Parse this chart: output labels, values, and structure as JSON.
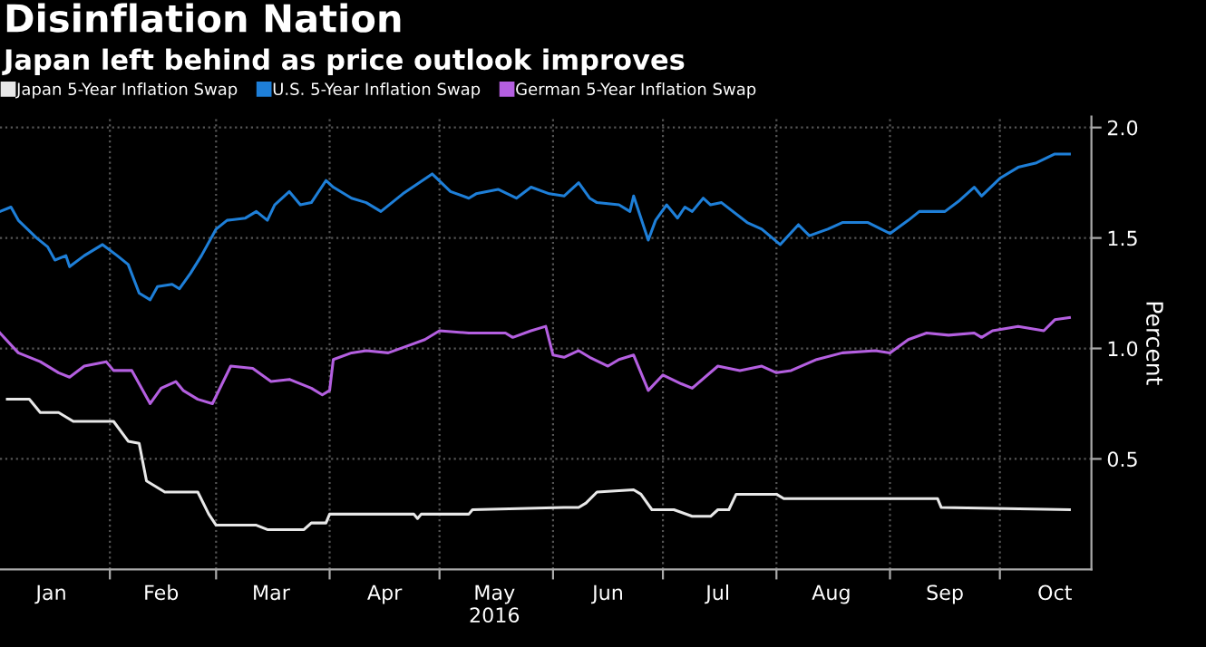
{
  "chart_data": {
    "type": "line",
    "title": "Disinflation Nation",
    "subtitle": "Japan left behind as price outlook improves",
    "ylabel": "Percent",
    "xlim": [
      "2016-01-02",
      "2016-10-26"
    ],
    "ylim": [
      0,
      2.05
    ],
    "yticks": [
      {
        "value": 0.5,
        "label": "0.5"
      },
      {
        "value": 1.0,
        "label": "1.0"
      },
      {
        "value": 1.5,
        "label": "1.5"
      },
      {
        "value": 2.0,
        "label": "2.0"
      }
    ],
    "xticks": [
      {
        "value": "2016-02-01",
        "label": null
      },
      {
        "value": "2016-03-01",
        "label": null
      },
      {
        "value": "2016-04-01",
        "label": null
      },
      {
        "value": "2016-05-01",
        "label": null
      },
      {
        "value": "2016-06-01",
        "label": null
      },
      {
        "value": "2016-07-01",
        "label": null
      },
      {
        "value": "2016-08-01",
        "label": null
      },
      {
        "value": "2016-09-01",
        "label": null
      },
      {
        "value": "2016-10-01",
        "label": null
      },
      {
        "value": "2016-01-16",
        "label": "Jan"
      },
      {
        "value": "2016-02-15",
        "label": "Feb"
      },
      {
        "value": "2016-03-16",
        "label": "Mar"
      },
      {
        "value": "2016-04-16",
        "label": "Apr"
      },
      {
        "value": "2016-05-16",
        "label": "May\n2016"
      },
      {
        "value": "2016-06-16",
        "label": "Jun"
      },
      {
        "value": "2016-07-16",
        "label": "Jul"
      },
      {
        "value": "2016-08-16",
        "label": "Aug"
      },
      {
        "value": "2016-09-16",
        "label": "Sep"
      },
      {
        "value": "2016-10-16",
        "label": "Oct"
      }
    ],
    "grid": true,
    "legend": "top left",
    "series": [
      {
        "name": "Japan 5-Year Inflation Swap",
        "color": "#e8e8e8",
        "x": [
          "2016-01-04",
          "2016-01-10",
          "2016-01-13",
          "2016-01-18",
          "2016-01-22",
          "2016-02-02",
          "2016-02-06",
          "2016-02-09",
          "2016-02-11",
          "2016-02-16",
          "2016-02-25",
          "2016-02-28",
          "2016-03-01",
          "2016-03-12",
          "2016-03-15",
          "2016-03-25",
          "2016-03-27",
          "2016-03-31",
          "2016-04-01",
          "2016-04-24",
          "2016-04-25",
          "2016-04-26",
          "2016-05-09",
          "2016-05-10",
          "2016-06-04",
          "2016-06-08",
          "2016-06-10",
          "2016-06-13",
          "2016-06-23",
          "2016-06-25",
          "2016-06-28",
          "2016-07-04",
          "2016-07-09",
          "2016-07-14",
          "2016-07-16",
          "2016-07-19",
          "2016-07-21",
          "2016-08-01",
          "2016-08-03",
          "2016-09-14",
          "2016-09-15",
          "2016-10-20"
        ],
        "values": [
          0.77,
          0.77,
          0.71,
          0.71,
          0.67,
          0.67,
          0.58,
          0.57,
          0.4,
          0.35,
          0.35,
          0.25,
          0.2,
          0.2,
          0.18,
          0.18,
          0.21,
          0.21,
          0.25,
          0.25,
          0.23,
          0.25,
          0.25,
          0.27,
          0.28,
          0.28,
          0.3,
          0.35,
          0.36,
          0.34,
          0.27,
          0.27,
          0.24,
          0.24,
          0.27,
          0.27,
          0.34,
          0.34,
          0.32,
          0.32,
          0.28,
          0.27
        ]
      },
      {
        "name": "U.S. 5-Year Inflation Swap",
        "color": "#1e7fd8",
        "x": [
          "2016-01-02",
          "2016-01-05",
          "2016-01-07",
          "2016-01-12",
          "2016-01-15",
          "2016-01-17",
          "2016-01-20",
          "2016-01-21",
          "2016-01-25",
          "2016-01-30",
          "2016-02-03",
          "2016-02-06",
          "2016-02-09",
          "2016-02-12",
          "2016-02-14",
          "2016-02-18",
          "2016-02-20",
          "2016-02-23",
          "2016-02-26",
          "2016-03-01",
          "2016-03-04",
          "2016-03-09",
          "2016-03-12",
          "2016-03-15",
          "2016-03-17",
          "2016-03-21",
          "2016-03-24",
          "2016-03-27",
          "2016-03-31",
          "2016-04-02",
          "2016-04-07",
          "2016-04-11",
          "2016-04-15",
          "2016-04-21",
          "2016-04-29",
          "2016-05-04",
          "2016-05-09",
          "2016-05-11",
          "2016-05-17",
          "2016-05-22",
          "2016-05-26",
          "2016-05-31",
          "2016-06-04",
          "2016-06-08",
          "2016-06-11",
          "2016-06-13",
          "2016-06-19",
          "2016-06-22",
          "2016-06-23",
          "2016-06-27",
          "2016-06-29",
          "2016-07-02",
          "2016-07-05",
          "2016-07-07",
          "2016-07-09",
          "2016-07-12",
          "2016-07-14",
          "2016-07-17",
          "2016-07-24",
          "2016-07-28",
          "2016-08-02",
          "2016-08-07",
          "2016-08-10",
          "2016-08-15",
          "2016-08-19",
          "2016-08-26",
          "2016-09-01",
          "2016-09-06",
          "2016-09-09",
          "2016-09-16",
          "2016-09-20",
          "2016-09-24",
          "2016-09-26",
          "2016-10-01",
          "2016-10-06",
          "2016-10-11",
          "2016-10-16",
          "2016-10-20"
        ],
        "values": [
          1.62,
          1.64,
          1.58,
          1.5,
          1.46,
          1.4,
          1.42,
          1.37,
          1.42,
          1.47,
          1.42,
          1.38,
          1.25,
          1.22,
          1.28,
          1.29,
          1.27,
          1.34,
          1.42,
          1.54,
          1.58,
          1.59,
          1.62,
          1.58,
          1.65,
          1.71,
          1.65,
          1.66,
          1.76,
          1.73,
          1.68,
          1.66,
          1.62,
          1.7,
          1.79,
          1.71,
          1.68,
          1.7,
          1.72,
          1.68,
          1.73,
          1.7,
          1.69,
          1.75,
          1.68,
          1.66,
          1.65,
          1.62,
          1.69,
          1.49,
          1.58,
          1.65,
          1.59,
          1.64,
          1.62,
          1.68,
          1.65,
          1.66,
          1.57,
          1.54,
          1.47,
          1.56,
          1.51,
          1.54,
          1.57,
          1.57,
          1.52,
          1.58,
          1.62,
          1.62,
          1.67,
          1.73,
          1.69,
          1.77,
          1.82,
          1.84,
          1.88,
          1.88
        ]
      },
      {
        "name": "German 5-Year Inflation Swap",
        "color": "#b45fe0",
        "x": [
          "2016-01-02",
          "2016-01-07",
          "2016-01-13",
          "2016-01-18",
          "2016-01-21",
          "2016-01-25",
          "2016-01-31",
          "2016-02-02",
          "2016-02-07",
          "2016-02-12",
          "2016-02-15",
          "2016-02-19",
          "2016-02-21",
          "2016-02-25",
          "2016-02-29",
          "2016-03-05",
          "2016-03-11",
          "2016-03-16",
          "2016-03-21",
          "2016-03-27",
          "2016-03-30",
          "2016-04-01",
          "2016-04-02",
          "2016-04-07",
          "2016-04-11",
          "2016-04-17",
          "2016-04-22",
          "2016-04-27",
          "2016-05-01",
          "2016-05-09",
          "2016-05-19",
          "2016-05-21",
          "2016-05-26",
          "2016-05-30",
          "2016-06-01",
          "2016-06-04",
          "2016-06-08",
          "2016-06-11",
          "2016-06-16",
          "2016-06-19",
          "2016-06-23",
          "2016-06-27",
          "2016-07-01",
          "2016-07-06",
          "2016-07-09",
          "2016-07-16",
          "2016-07-22",
          "2016-07-28",
          "2016-08-01",
          "2016-08-05",
          "2016-08-12",
          "2016-08-19",
          "2016-08-28",
          "2016-09-01",
          "2016-09-06",
          "2016-09-11",
          "2016-09-17",
          "2016-09-24",
          "2016-09-26",
          "2016-09-29",
          "2016-10-06",
          "2016-10-13",
          "2016-10-16",
          "2016-10-20"
        ],
        "values": [
          1.07,
          0.98,
          0.94,
          0.89,
          0.87,
          0.92,
          0.94,
          0.9,
          0.9,
          0.75,
          0.82,
          0.85,
          0.81,
          0.77,
          0.75,
          0.92,
          0.91,
          0.85,
          0.86,
          0.82,
          0.79,
          0.81,
          0.95,
          0.98,
          0.99,
          0.98,
          1.01,
          1.04,
          1.08,
          1.07,
          1.07,
          1.05,
          1.08,
          1.1,
          0.97,
          0.96,
          0.99,
          0.96,
          0.92,
          0.95,
          0.97,
          0.81,
          0.88,
          0.84,
          0.82,
          0.92,
          0.9,
          0.92,
          0.89,
          0.9,
          0.95,
          0.98,
          0.99,
          0.98,
          1.04,
          1.07,
          1.06,
          1.07,
          1.05,
          1.08,
          1.1,
          1.08,
          1.13,
          1.14
        ]
      }
    ]
  }
}
